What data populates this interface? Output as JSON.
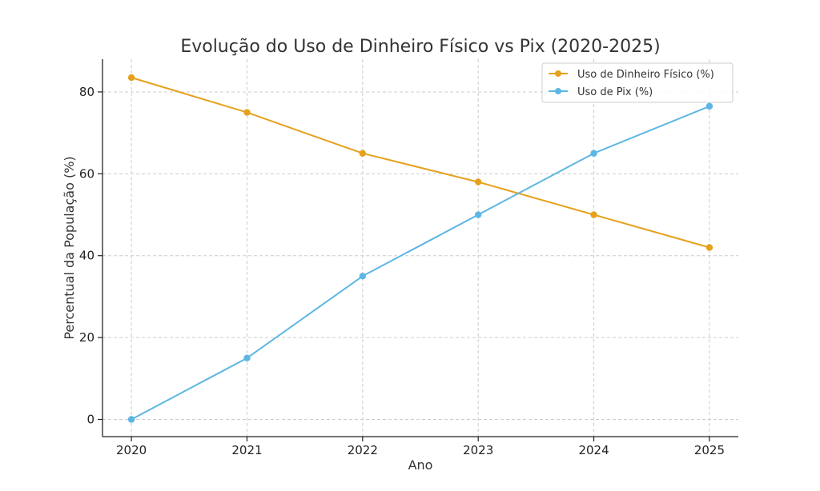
{
  "chart_data": {
    "type": "line",
    "title": "Evolução do Uso de Dinheiro Físico vs Pix (2020-2025)",
    "xlabel": "Ano",
    "ylabel": "Percentual da População (%)",
    "x": [
      2020,
      2021,
      2022,
      2023,
      2024,
      2025
    ],
    "x_tick_labels": [
      "2020",
      "2021",
      "2022",
      "2023",
      "2024",
      "2025"
    ],
    "y_ticks": [
      0,
      20,
      40,
      60,
      80
    ],
    "y_tick_labels": [
      "0",
      "20",
      "40",
      "60",
      "80"
    ],
    "xlim": [
      2019.75,
      2025.25
    ],
    "ylim": [
      -4.2,
      88
    ],
    "grid": true,
    "legend_position": "upper right",
    "series": [
      {
        "name": "Uso de Dinheiro Físico (%)",
        "color": "#E5A11C",
        "values": [
          83.5,
          75,
          65,
          58,
          50,
          42
        ]
      },
      {
        "name": "Uso de Pix (%)",
        "color": "#5DB6E4",
        "values": [
          0,
          15,
          35,
          50,
          65,
          76.5
        ]
      }
    ]
  }
}
